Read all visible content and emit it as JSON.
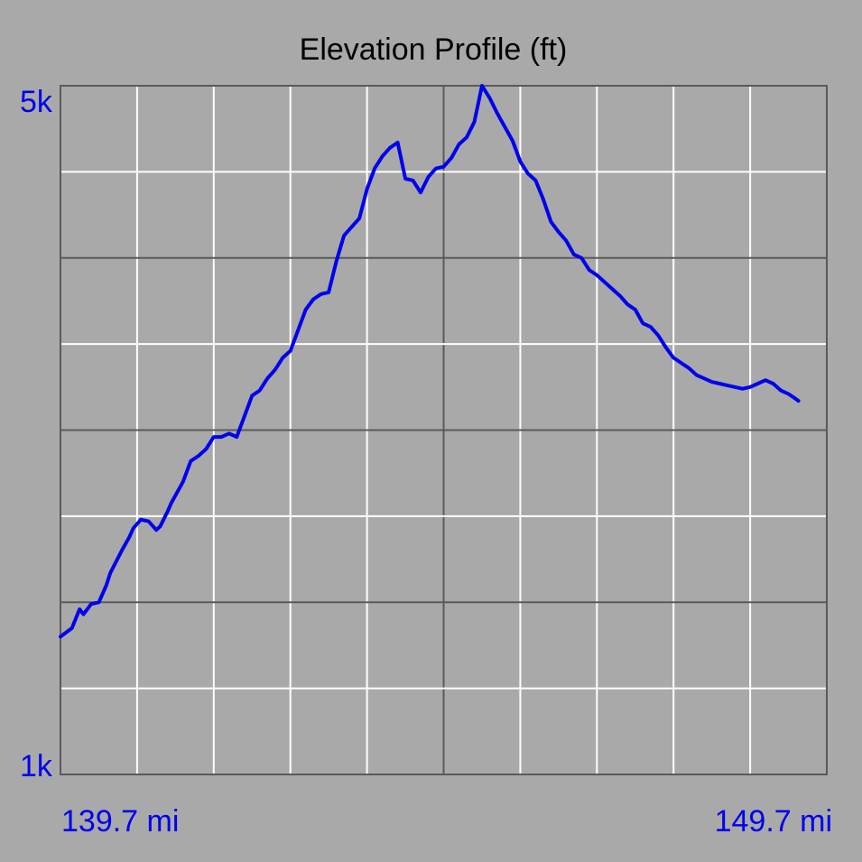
{
  "chart_data": {
    "type": "line",
    "title": "Elevation Profile (ft)",
    "xlabel": "",
    "ylabel": "",
    "x_start_label": "139.7 mi",
    "x_end_label": "149.7 mi",
    "y_max_label": "5k",
    "y_min_label": "1k",
    "xlim": [
      139.7,
      149.7
    ],
    "ylim": [
      1000,
      5000
    ],
    "grid": true,
    "legend": "none",
    "colors": {
      "background": "#a9a9a9",
      "line": "#0000ee",
      "label": "#0000ee",
      "title": "#000000",
      "minor_grid": "#ffffff",
      "major_grid": "#5a5a5a"
    },
    "series": [
      {
        "x": [
          139.7,
          139.85,
          139.95,
          140.0,
          140.1,
          140.2,
          140.3,
          140.35,
          140.5,
          140.6,
          140.65,
          140.75,
          140.85,
          140.95,
          141.0,
          141.1,
          141.15,
          141.3,
          141.4,
          141.5,
          141.6,
          141.7,
          141.8,
          141.9,
          142.0,
          142.1,
          142.2,
          142.3,
          142.4,
          142.5,
          142.6,
          142.7,
          142.8,
          142.9,
          143.0,
          143.1,
          143.2,
          143.3,
          143.4,
          143.5,
          143.6,
          143.7,
          143.8,
          143.9,
          144.0,
          144.1,
          144.2,
          144.3,
          144.4,
          144.5,
          144.6,
          144.7,
          144.8,
          144.9,
          145.0,
          145.1,
          145.2,
          145.3,
          145.4,
          145.5,
          145.6,
          145.7,
          145.8,
          145.9,
          146.0,
          146.1,
          146.2,
          146.3,
          146.4,
          146.5,
          146.6,
          146.7,
          146.8,
          146.9,
          147.0,
          147.1,
          147.2,
          147.3,
          147.4,
          147.5,
          147.6,
          147.7,
          147.8,
          147.9,
          148.0,
          148.1,
          148.2,
          148.3,
          148.4,
          148.5,
          148.6,
          148.7,
          148.8,
          148.9,
          149.0,
          149.1,
          149.2,
          149.3,
          149.33
        ],
        "y": [
          1800,
          1850,
          1960,
          1930,
          1990,
          2000,
          2100,
          2170,
          2300,
          2380,
          2430,
          2480,
          2470,
          2420,
          2440,
          2530,
          2580,
          2700,
          2820,
          2850,
          2890,
          2960,
          2960,
          2980,
          2960,
          3080,
          3200,
          3230,
          3300,
          3350,
          3420,
          3460,
          3580,
          3700,
          3760,
          3790,
          3800,
          3980,
          4130,
          4180,
          4230,
          4400,
          4520,
          4590,
          4640,
          4670,
          4460,
          4450,
          4380,
          4470,
          4520,
          4530,
          4580,
          4660,
          4700,
          4790,
          5000,
          4930,
          4840,
          4760,
          4680,
          4560,
          4490,
          4450,
          4340,
          4210,
          4150,
          4100,
          4020,
          4000,
          3930,
          3900,
          3860,
          3820,
          3780,
          3730,
          3700,
          3620,
          3600,
          3550,
          3480,
          3420,
          3390,
          3360,
          3320,
          3300,
          3280,
          3270,
          3260,
          3250,
          3240,
          3250,
          3270,
          3290,
          3270,
          3230,
          3210,
          3180,
          3170
        ]
      }
    ]
  }
}
